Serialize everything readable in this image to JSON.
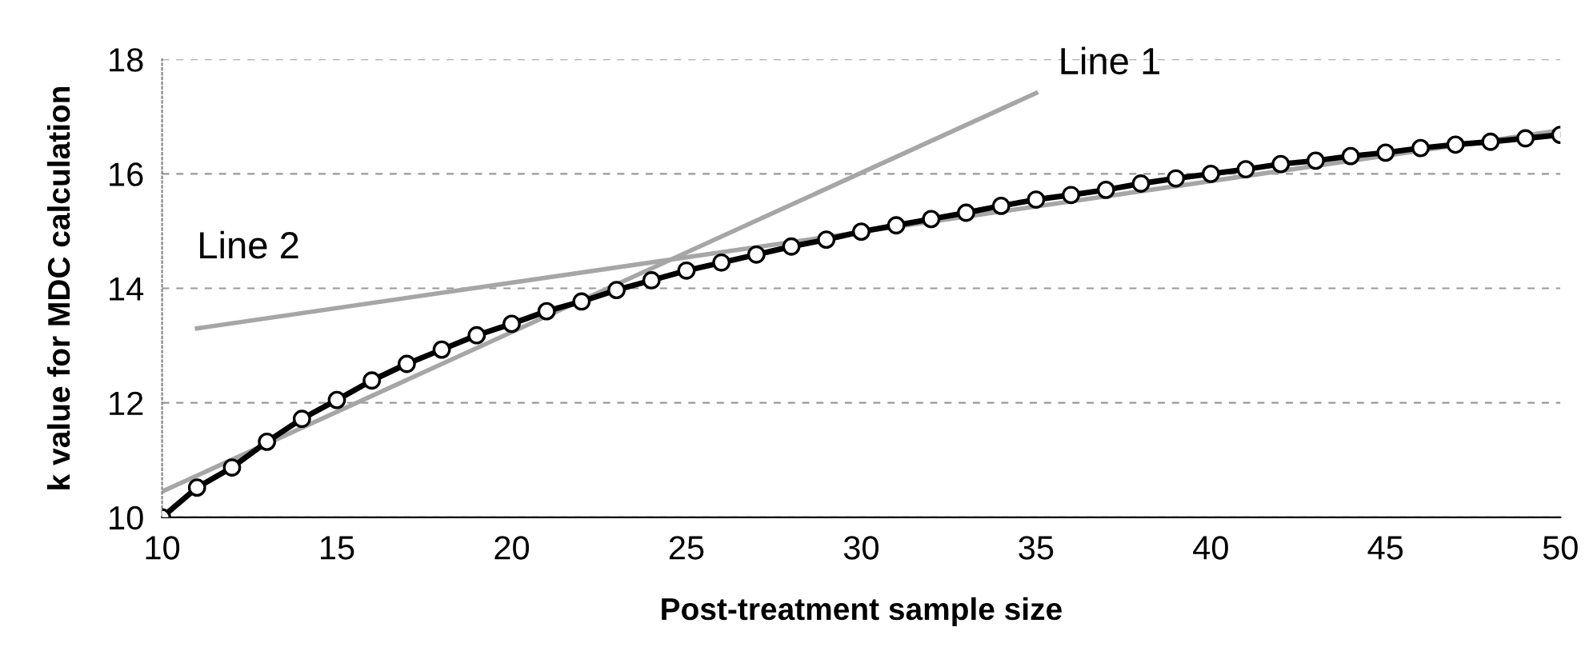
{
  "chart_data": {
    "type": "line",
    "xlabel": "Post-treatment sample size",
    "ylabel": "k value for MDC calculation",
    "xlim": [
      10,
      50
    ],
    "xticks": [
      10,
      15,
      20,
      25,
      30,
      35,
      40,
      45,
      50
    ],
    "ylim": [
      10,
      18
    ],
    "yticks": [
      10,
      12,
      14,
      16,
      18
    ],
    "grid": "y",
    "series": [
      {
        "name": "Line 1",
        "color": "#a6a6a6",
        "marker": "none",
        "x": [
          10,
          35
        ],
        "values": [
          10.45,
          17.41
        ]
      },
      {
        "name": "Line 2",
        "color": "#a6a6a6",
        "marker": "none",
        "x": [
          11,
          50
        ],
        "values": [
          13.3,
          16.76
        ]
      },
      {
        "color": "#000000",
        "marker": "circle",
        "x": [
          10,
          11,
          12,
          13,
          14,
          15,
          16,
          17,
          18,
          19,
          20,
          21,
          22,
          23,
          24,
          25,
          26,
          27,
          28,
          29,
          30,
          31,
          32,
          33,
          34,
          35,
          36,
          37,
          38,
          39,
          40,
          41,
          42,
          43,
          44,
          45,
          46,
          47,
          48,
          49,
          50
        ],
        "values": [
          10.0,
          10.52,
          10.87,
          11.32,
          11.72,
          12.05,
          12.39,
          12.68,
          12.93,
          13.18,
          13.38,
          13.6,
          13.77,
          13.97,
          14.14,
          14.31,
          14.45,
          14.59,
          14.73,
          14.85,
          14.99,
          15.1,
          15.21,
          15.32,
          15.44,
          15.55,
          15.63,
          15.72,
          15.83,
          15.92,
          16.0,
          16.08,
          16.17,
          16.23,
          16.31,
          16.37,
          16.45,
          16.51,
          16.56,
          16.62,
          16.68
        ]
      }
    ]
  }
}
